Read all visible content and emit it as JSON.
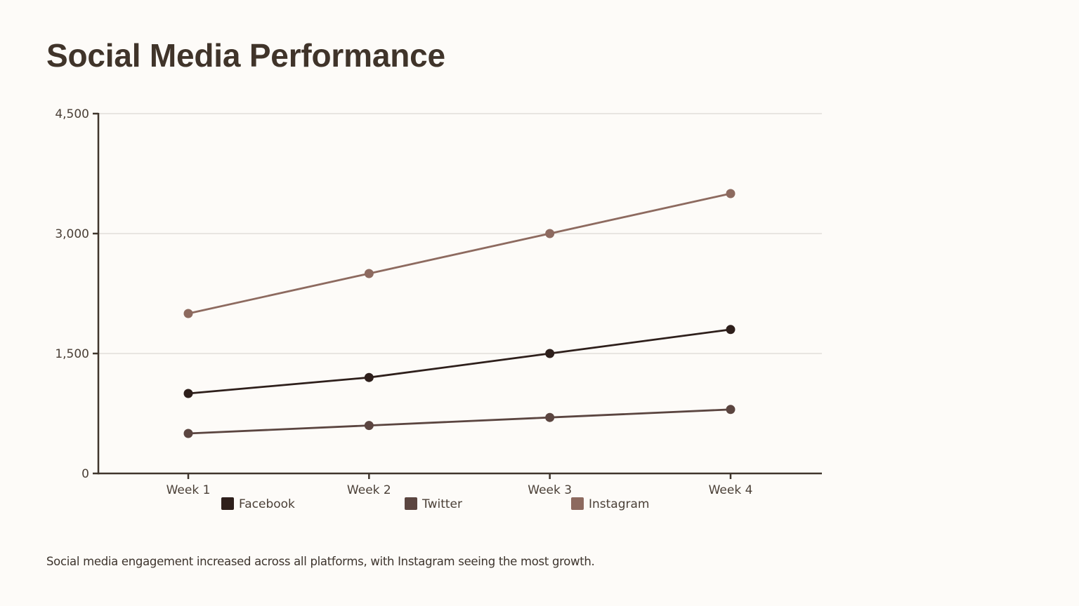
{
  "title": "Social Media Performance",
  "caption": "Social media engagement increased across all platforms, with Instagram seeing the most growth.",
  "chart_data": {
    "type": "line",
    "title": "",
    "xlabel": "",
    "ylabel": "",
    "categories": [
      "Week 1",
      "Week 2",
      "Week 3",
      "Week 4"
    ],
    "ylim": [
      0,
      4500
    ],
    "yticks": [
      0,
      1500,
      3000,
      4500
    ],
    "ytick_labels": [
      "0",
      "1,500",
      "3,000",
      "4,500"
    ],
    "grid": true,
    "legend_position": "bottom",
    "series": [
      {
        "name": "Facebook",
        "color": "#2e1f1b",
        "values": [
          1000,
          1200,
          1500,
          1800
        ]
      },
      {
        "name": "Twitter",
        "color": "#5b4540",
        "values": [
          500,
          600,
          700,
          800
        ]
      },
      {
        "name": "Instagram",
        "color": "#8d6a5f",
        "values": [
          2000,
          2500,
          3000,
          3500
        ]
      }
    ]
  }
}
